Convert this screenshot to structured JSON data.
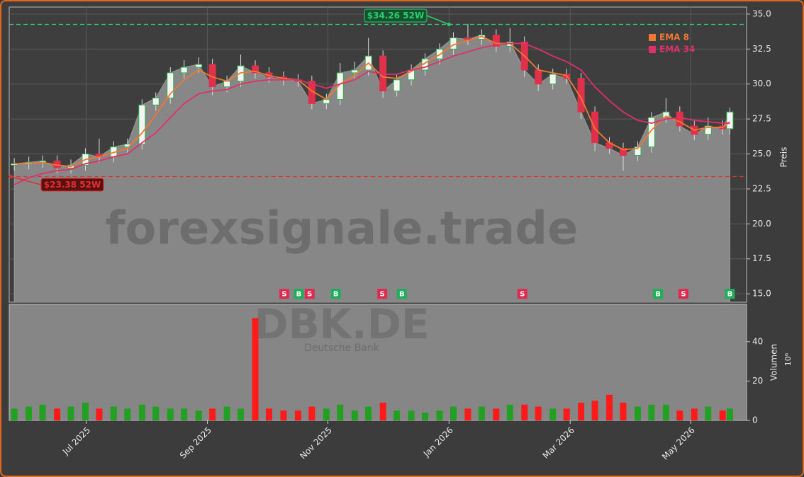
{
  "chart_data": {
    "type": "candlestick",
    "xlim": [
      2025.394,
      2026.41
    ],
    "xticks": [
      {
        "value": 2025.5,
        "label": "Jul 2025"
      },
      {
        "value": 2025.667,
        "label": "Sep 2025"
      },
      {
        "value": 2025.833,
        "label": "Nov 2025"
      },
      {
        "value": 2026.0,
        "label": "Jan 2026"
      },
      {
        "value": 2026.167,
        "label": "Mar 2026"
      },
      {
        "value": 2026.333,
        "label": "May 2026"
      }
    ],
    "ylim": [
      14.4,
      35.5
    ],
    "yticks": [
      {
        "value": 15,
        "label": "15.0"
      },
      {
        "value": 17.5,
        "label": "17.5"
      },
      {
        "value": 20,
        "label": "20.0"
      },
      {
        "value": 22.5,
        "label": "22.5"
      },
      {
        "value": 25,
        "label": "25.0"
      },
      {
        "value": 27.5,
        "label": "27.5"
      },
      {
        "value": 30,
        "label": "30.0"
      },
      {
        "value": 32.5,
        "label": "32.5"
      },
      {
        "value": 35,
        "label": "35.0"
      }
    ],
    "ylabel": "Preis",
    "grid": true,
    "candles": {
      "x": [
        2025.401,
        2025.421,
        2025.44,
        2025.46,
        2025.479,
        2025.499,
        2025.518,
        2025.538,
        2025.557,
        2025.577,
        2025.596,
        2025.616,
        2025.635,
        2025.655,
        2025.674,
        2025.694,
        2025.713,
        2025.733,
        2025.752,
        2025.772,
        2025.792,
        2025.811,
        2025.831,
        2025.85,
        2025.87,
        2025.889,
        2025.909,
        2025.928,
        2025.948,
        2025.967,
        2025.987,
        2026.006,
        2026.026,
        2026.045,
        2026.065,
        2026.084,
        2026.104,
        2026.123,
        2026.143,
        2026.162,
        2026.182,
        2026.201,
        2026.221,
        2026.24,
        2026.26,
        2026.279,
        2026.299,
        2026.318,
        2026.338,
        2026.357,
        2026.377,
        2026.387
      ],
      "open": [
        24.2,
        24.3,
        24.4,
        24.5,
        24.0,
        24.2,
        25.0,
        24.8,
        25.5,
        25.7,
        28.5,
        29.0,
        30.8,
        31.2,
        31.4,
        29.8,
        30.2,
        31.3,
        30.8,
        30.5,
        30.3,
        30.2,
        28.6,
        28.9,
        30.8,
        31.0,
        32.0,
        29.5,
        30.3,
        31.0,
        31.8,
        32.5,
        33.3,
        33.2,
        33.5,
        32.7,
        33.0,
        31.0,
        30.0,
        30.7,
        30.4,
        28.0,
        25.8,
        25.4,
        24.9,
        25.5,
        27.6,
        28.0,
        27.0,
        26.4,
        27.0,
        26.8
      ],
      "high": [
        24.7,
        24.8,
        24.9,
        24.9,
        24.6,
        25.4,
        26.1,
        25.9,
        26.1,
        28.9,
        29.4,
        31.2,
        31.7,
        31.9,
        31.8,
        30.6,
        32.1,
        31.7,
        31.2,
        30.9,
        30.7,
        30.6,
        29.3,
        31.5,
        31.6,
        33.3,
        32.4,
        30.7,
        31.4,
        32.2,
        32.9,
        33.7,
        34.3,
        33.9,
        33.9,
        34.0,
        33.4,
        31.4,
        31.1,
        31.1,
        30.8,
        28.4,
        26.2,
        25.8,
        25.9,
        28.0,
        29.0,
        28.4,
        27.4,
        27.6,
        27.4,
        28.3
      ],
      "low": [
        23.8,
        23.9,
        24.0,
        23.6,
        23.6,
        23.8,
        24.4,
        24.4,
        25.1,
        25.3,
        28.1,
        28.6,
        30.4,
        30.8,
        29.2,
        29.4,
        29.8,
        30.4,
        30.1,
        29.9,
        29.8,
        28.2,
        28.2,
        28.5,
        30.4,
        30.6,
        29.0,
        29.1,
        29.9,
        30.6,
        31.4,
        32.1,
        32.8,
        32.8,
        32.3,
        32.3,
        30.5,
        29.5,
        29.6,
        30.0,
        27.5,
        25.2,
        25.0,
        23.8,
        24.5,
        25.1,
        27.2,
        26.6,
        26.0,
        26.0,
        26.4,
        26.4
      ],
      "close": [
        24.3,
        24.4,
        24.5,
        24.0,
        24.2,
        25.0,
        24.8,
        25.5,
        25.7,
        28.5,
        29.0,
        30.8,
        31.2,
        31.4,
        29.8,
        30.2,
        31.3,
        30.8,
        30.5,
        30.3,
        30.2,
        28.6,
        28.9,
        30.8,
        31.0,
        32.0,
        29.5,
        30.3,
        31.0,
        31.8,
        32.5,
        33.3,
        33.2,
        33.5,
        32.7,
        33.0,
        31.0,
        30.0,
        30.7,
        30.4,
        28.0,
        25.8,
        25.4,
        24.9,
        25.5,
        27.6,
        28.0,
        27.0,
        26.4,
        27.0,
        26.8,
        28.0
      ]
    },
    "series": [
      {
        "name": "EMA 8",
        "color": "#f07832",
        "values": [
          24.3,
          24.3,
          24.4,
          24.2,
          24.1,
          24.6,
          24.8,
          25.1,
          25.4,
          26.5,
          27.8,
          29.3,
          30.3,
          31.0,
          30.5,
          30.2,
          30.8,
          30.9,
          30.6,
          30.4,
          30.3,
          29.5,
          28.9,
          30.0,
          30.6,
          31.5,
          30.5,
          30.4,
          30.9,
          31.5,
          32.1,
          32.8,
          33.1,
          33.4,
          32.9,
          32.9,
          32.0,
          31.0,
          30.8,
          30.6,
          29.0,
          26.8,
          25.8,
          25.3,
          25.4,
          26.7,
          27.7,
          27.3,
          26.7,
          26.9,
          26.9,
          27.3
        ]
      },
      {
        "name": "EMA 34",
        "color": "#e0306a",
        "values": [
          22.8,
          23.3,
          23.6,
          23.8,
          23.9,
          24.3,
          24.5,
          24.8,
          25.0,
          25.8,
          26.5,
          27.6,
          28.6,
          29.3,
          29.5,
          29.6,
          30.0,
          30.2,
          30.3,
          30.3,
          30.3,
          30.0,
          29.7,
          30.0,
          30.3,
          30.9,
          30.7,
          30.7,
          31.0,
          31.2,
          31.6,
          32.0,
          32.3,
          32.6,
          32.8,
          32.9,
          32.9,
          32.5,
          32.0,
          31.6,
          31.0,
          29.8,
          28.8,
          28.0,
          27.4,
          27.2,
          27.5,
          27.6,
          27.4,
          27.3,
          27.2,
          27.2
        ]
      }
    ],
    "hlines": [
      {
        "value": 34.26,
        "label": "$34.26 52W",
        "color": "#2ecc71",
        "at": 2026.0
      },
      {
        "value": 23.38,
        "label": "$23.38 52W",
        "color": "#e03030",
        "at": 2025.396
      }
    ],
    "signals": {
      "x": [
        2025.773,
        2025.793,
        2025.808,
        2025.844,
        2025.908,
        2025.935,
        2026.101,
        2026.288,
        2026.323,
        2026.387
      ],
      "labels": [
        "S",
        "B",
        "S",
        "B",
        "S",
        "B",
        "S",
        "B",
        "S",
        "B"
      ]
    },
    "volume": {
      "ylabel": "Volumen",
      "unit": "10⁶",
      "ylim": [
        0,
        59
      ],
      "yticks": [
        0,
        20,
        40
      ],
      "values": [
        6,
        7,
        8,
        6,
        7,
        9,
        6,
        7,
        6,
        8,
        7,
        6,
        6,
        5,
        6,
        7,
        6,
        52,
        6,
        5,
        5,
        7,
        6,
        8,
        5,
        7,
        9,
        5,
        5,
        4,
        5,
        7,
        6,
        7,
        6,
        8,
        8,
        7,
        6,
        6,
        9,
        10,
        13,
        9,
        7,
        8,
        8,
        5,
        6,
        7,
        5,
        6
      ]
    },
    "watermark": {
      "site": "forexsignale.trade",
      "ticker": "DBK.DE",
      "company": "Deutsche Bank"
    }
  }
}
